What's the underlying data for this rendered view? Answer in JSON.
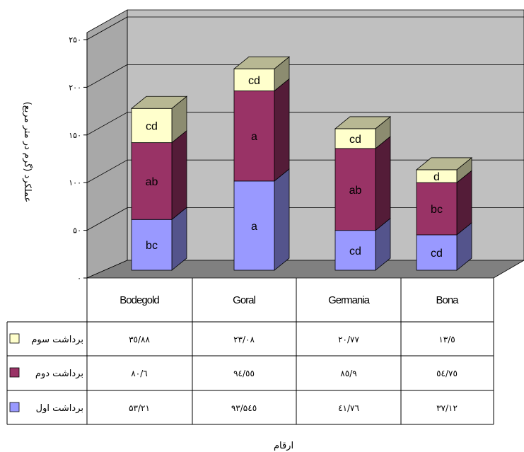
{
  "chart_data": {
    "type": "bar",
    "stacked": true,
    "three_d": true,
    "categories": [
      "Bodegold",
      "Goral",
      "Germania",
      "Bona"
    ],
    "ylabel": "عملکرد (گرم در متر مربع)",
    "xlabel": "ارقام",
    "ylim": [
      0,
      250
    ],
    "y_ticks": [
      0,
      50,
      100,
      150,
      200,
      250
    ],
    "y_tick_labels": [
      "۰",
      "۵۰",
      "۱۰۰",
      "۱۵۰",
      "۲۰۰",
      "۲۵۰"
    ],
    "grid": true,
    "series": [
      {
        "name": "برداشت اول",
        "color": "#9999ff",
        "values": [
          53.21,
          93.545,
          41.76,
          37.12
        ],
        "value_labels": [
          "۵۳/۲۱",
          "۹۳/۵٤٥",
          "٤۱/۷٦",
          "۳۷/۱۲"
        ],
        "letters": [
          "bc",
          "a",
          "cd",
          "cd"
        ]
      },
      {
        "name": "برداشت دوم",
        "color": "#993366",
        "values": [
          80.6,
          94.55,
          85.9,
          54.75
        ],
        "value_labels": [
          "۸۰/٦",
          "۹٤/٥٥",
          "۸٥/۹",
          "٥٤/۷٥"
        ],
        "letters": [
          "ab",
          "a",
          "ab",
          "bc"
        ]
      },
      {
        "name": "برداشت سوم",
        "color": "#ffffcc",
        "values": [
          35.88,
          23.08,
          20.77,
          13.5
        ],
        "value_labels": [
          "۳٥/۸۸",
          "۲۳/۰۸",
          "۲۰/۷۷",
          "۱۳/٥"
        ],
        "letters": [
          "cd",
          "cd",
          "cd",
          "d"
        ]
      }
    ]
  }
}
